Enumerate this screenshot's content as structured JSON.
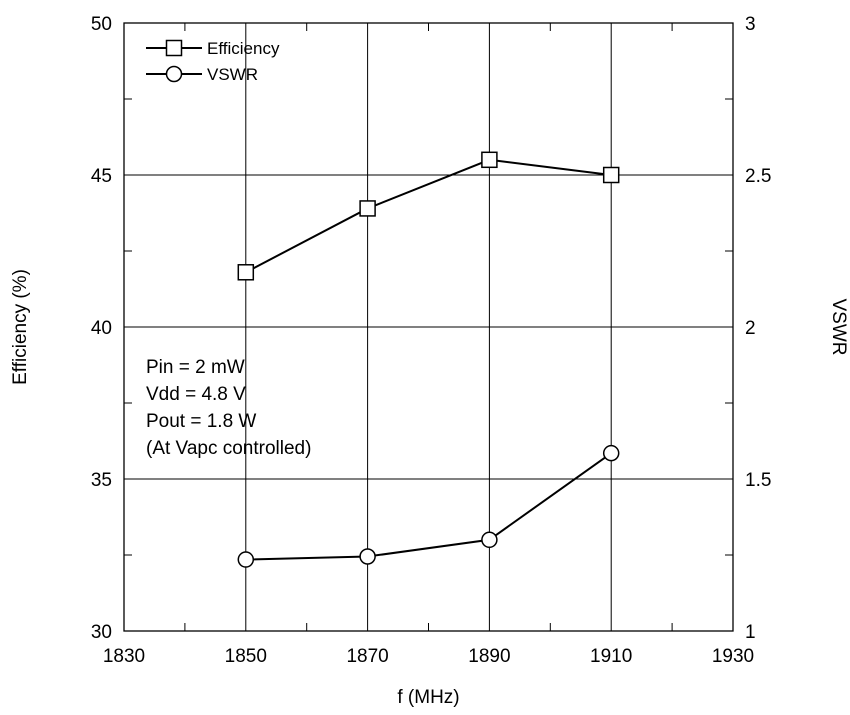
{
  "chart_data": {
    "type": "line",
    "xlabel": "f (MHz)",
    "ylabel": "Efficiency (%)",
    "y2label": "VSWR",
    "xlim": [
      1830,
      1930
    ],
    "ylim": [
      30,
      50
    ],
    "y2lim": [
      1,
      3
    ],
    "x_ticks": [
      "1830",
      "1850",
      "1870",
      "1890",
      "1910",
      "1930"
    ],
    "y_ticks": [
      "30",
      "35",
      "40",
      "45",
      "50"
    ],
    "y2_ticks": [
      "1",
      "1.5",
      "2",
      "2.5",
      "3"
    ],
    "grid": true,
    "legend_position": "top-left",
    "series": [
      {
        "name": "Efficiency",
        "axis": "left",
        "marker": "square",
        "x": [
          1850,
          1870,
          1890,
          1910
        ],
        "values": [
          41.8,
          43.9,
          45.5,
          45.0
        ]
      },
      {
        "name": "VSWR",
        "axis": "right",
        "marker": "circle",
        "x": [
          1850,
          1870,
          1890,
          1910
        ],
        "values": [
          1.235,
          1.245,
          1.3,
          1.585
        ]
      }
    ],
    "annotation": [
      "Pin = 2 mW",
      "Vdd = 4.8 V",
      "Pout = 1.8 W",
      "(At Vapc controlled)"
    ]
  }
}
